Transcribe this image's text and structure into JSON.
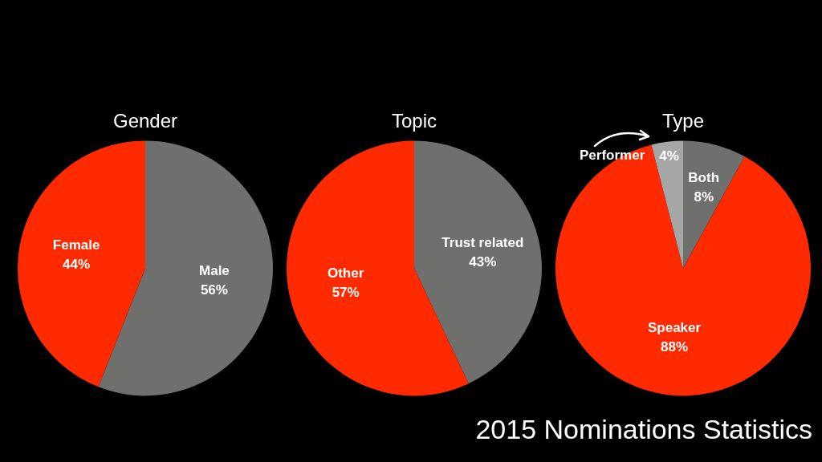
{
  "chart_data": [
    {
      "type": "pie",
      "title": "Gender",
      "categories": [
        "Male",
        "Female"
      ],
      "values": [
        56,
        44
      ],
      "colors": [
        "#6f706e",
        "#ff2a00"
      ],
      "value_labels": [
        "56%",
        "44%"
      ],
      "legend": false
    },
    {
      "type": "pie",
      "title": "Topic",
      "categories": [
        "Trust related",
        "Other"
      ],
      "values": [
        43,
        57
      ],
      "colors": [
        "#6f706e",
        "#ff2a00"
      ],
      "value_labels": [
        "43%",
        "57%"
      ],
      "legend": false
    },
    {
      "type": "pie",
      "title": "Type",
      "categories": [
        "Both",
        "Speaker",
        "Performer"
      ],
      "values": [
        8,
        88,
        4
      ],
      "colors": [
        "#6f706e",
        "#ff2a00",
        "#a6a6a6"
      ],
      "value_labels": [
        "8%",
        "88%",
        "4%"
      ],
      "legend": false,
      "annotations": [
        "2015 Nominations Statistics"
      ]
    }
  ]
}
